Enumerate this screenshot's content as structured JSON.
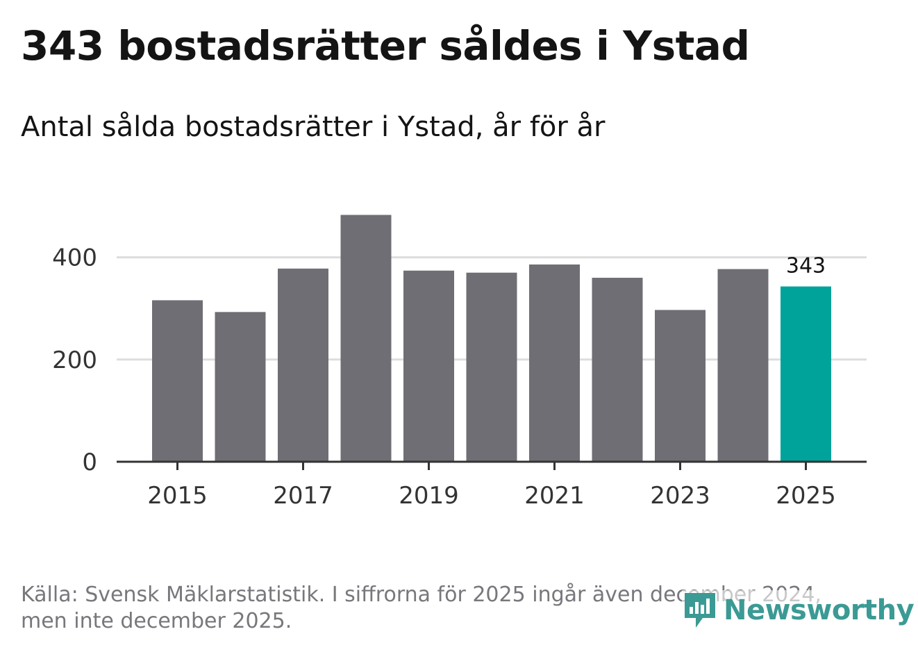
{
  "header": {
    "title": "343 bostadsrätter såldes i Ystad",
    "subtitle": "Antal sålda bostadsrätter i Ystad, år för år"
  },
  "chart_data": {
    "type": "bar",
    "categories": [
      "2015",
      "2016",
      "2017",
      "2018",
      "2019",
      "2020",
      "2021",
      "2022",
      "2023",
      "2024",
      "2025"
    ],
    "values": [
      316,
      293,
      378,
      483,
      374,
      370,
      386,
      360,
      297,
      377,
      343
    ],
    "xticks": [
      "2015",
      "2017",
      "2019",
      "2021",
      "2023",
      "2025"
    ],
    "yticks": [
      0,
      200,
      400
    ],
    "ylim": [
      0,
      500
    ],
    "highlight_index": 10,
    "highlight_label": "343",
    "grid": true,
    "colors": {
      "bar": "#6f6e74",
      "highlight": "#00a39a",
      "grid": "#dddddd",
      "axis": "#333333"
    }
  },
  "footer": {
    "source_line1": "Källa: Svensk Mäklarstatistik. I siffrorna för 2025 ingår även december 2024,",
    "source_line2": "men inte december 2025."
  },
  "brand": {
    "name": "Newsworthy",
    "icon": "newsworthy-logo-icon",
    "color": "#3b9a94"
  }
}
